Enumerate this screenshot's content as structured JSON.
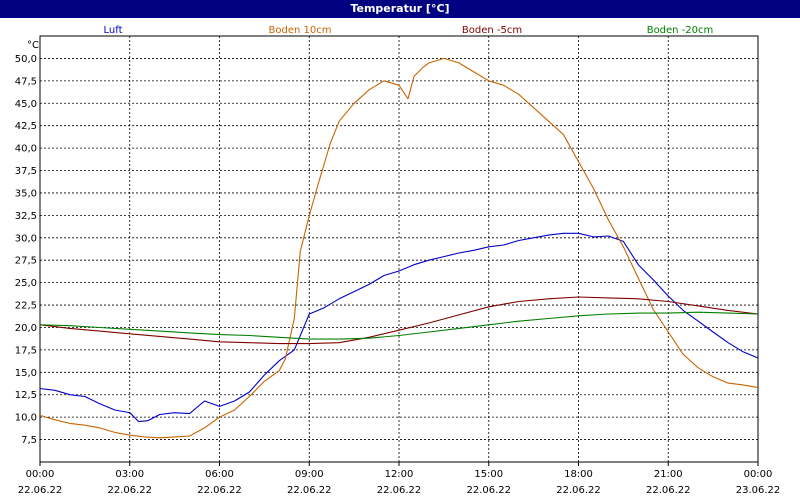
{
  "window": {
    "title": "Temperatur [°C]"
  },
  "chart_data": {
    "type": "line",
    "title": "Temperatur [°C]",
    "ylabel": "°C",
    "xlabel": "",
    "ylim": [
      5.0,
      52.5
    ],
    "xlim": [
      0,
      24
    ],
    "grid": true,
    "legend_placement": "top",
    "y_ticks": [
      "7,5",
      "10,0",
      "12,5",
      "15,0",
      "17,5",
      "20,0",
      "22,5",
      "25,0",
      "27,5",
      "30,0",
      "32,5",
      "35,0",
      "37,5",
      "40,0",
      "42,5",
      "45,0",
      "47,5",
      "50,0"
    ],
    "x_ticks": [
      {
        "time": "00:00",
        "date": "22.06.22"
      },
      {
        "time": "03:00",
        "date": "22.06.22"
      },
      {
        "time": "06:00",
        "date": "22.06.22"
      },
      {
        "time": "09:00",
        "date": "22.06.22"
      },
      {
        "time": "12:00",
        "date": "22.06.22"
      },
      {
        "time": "15:00",
        "date": "22.06.22"
      },
      {
        "time": "18:00",
        "date": "22.06.22"
      },
      {
        "time": "21:00",
        "date": "22.06.22"
      },
      {
        "time": "00:00",
        "date": "23.06.22"
      }
    ],
    "series": [
      {
        "name": "Luft",
        "color": "#0000cc",
        "x": [
          0,
          0.5,
          1,
          1.5,
          2,
          2.5,
          3,
          3.3,
          3.6,
          4,
          4.5,
          5,
          5.5,
          6,
          6.5,
          7,
          7.5,
          8,
          8.5,
          9,
          9.5,
          10,
          10.5,
          11,
          11.5,
          12,
          12.5,
          13,
          13.5,
          14,
          14.5,
          15,
          15.5,
          16,
          16.5,
          17,
          17.5,
          18,
          18.5,
          19,
          19.5,
          20,
          20.5,
          21,
          21.5,
          22,
          22.5,
          23,
          23.5,
          24
        ],
        "y": [
          13.2,
          13.0,
          12.5,
          12.3,
          11.5,
          10.8,
          10.5,
          9.5,
          9.6,
          10.3,
          10.5,
          10.4,
          11.8,
          11.2,
          11.8,
          12.8,
          14.7,
          16.3,
          17.5,
          21.5,
          22.2,
          23.2,
          24.0,
          24.8,
          25.8,
          26.3,
          27.0,
          27.5,
          27.9,
          28.3,
          28.6,
          29.0,
          29.2,
          29.7,
          30.0,
          30.3,
          30.5,
          30.5,
          30.1,
          30.2,
          29.6,
          27.0,
          25.3,
          23.5,
          21.9,
          20.7,
          19.5,
          18.3,
          17.3,
          16.6
        ]
      },
      {
        "name": "Boden 10cm",
        "color": "#c86400",
        "x": [
          0,
          0.5,
          1,
          1.5,
          2,
          2.5,
          3,
          3.5,
          4,
          4.5,
          5,
          5.5,
          6,
          6.5,
          7,
          7.5,
          8,
          8.2,
          8.5,
          8.7,
          9,
          9.3,
          9.7,
          10,
          10.5,
          11,
          11.5,
          12,
          12.3,
          12.5,
          12.8,
          13,
          13.5,
          14,
          14.5,
          15,
          15.5,
          16,
          16.5,
          17,
          17.5,
          18,
          18.5,
          19,
          19.5,
          20,
          20.5,
          21,
          21.5,
          22,
          22.5,
          23,
          23.5,
          24
        ],
        "y": [
          10.2,
          9.7,
          9.3,
          9.1,
          8.8,
          8.3,
          8.0,
          7.8,
          7.7,
          7.8,
          7.9,
          8.8,
          10.0,
          10.8,
          12.3,
          14.0,
          15.2,
          16.5,
          21.0,
          28.5,
          32.5,
          36.0,
          40.5,
          43.0,
          45.0,
          46.5,
          47.5,
          47.0,
          45.5,
          48.0,
          49.0,
          49.5,
          50.0,
          49.5,
          48.5,
          47.5,
          47.0,
          46.0,
          44.5,
          43.0,
          41.5,
          38.5,
          35.5,
          32.0,
          29.0,
          25.5,
          22.0,
          19.5,
          17.0,
          15.5,
          14.5,
          13.8,
          13.6,
          13.3
        ]
      },
      {
        "name": "Boden -5cm",
        "color": "#800000",
        "x": [
          0,
          1,
          2,
          3,
          4,
          5,
          6,
          7,
          8,
          9,
          10,
          11,
          12,
          13,
          14,
          15,
          16,
          17,
          18,
          19,
          20,
          21,
          22,
          23,
          24
        ],
        "y": [
          20.3,
          19.9,
          19.6,
          19.3,
          19.0,
          18.7,
          18.4,
          18.3,
          18.2,
          18.2,
          18.3,
          18.9,
          19.7,
          20.5,
          21.4,
          22.3,
          22.9,
          23.2,
          23.4,
          23.3,
          23.2,
          22.9,
          22.4,
          21.9,
          21.5
        ]
      },
      {
        "name": "Boden -20cm",
        "color": "#008000",
        "x": [
          0,
          1,
          2,
          3,
          4,
          5,
          6,
          7,
          8,
          9,
          10,
          11,
          12,
          13,
          14,
          15,
          16,
          17,
          18,
          19,
          20,
          21,
          22,
          23,
          24
        ],
        "y": [
          20.3,
          20.2,
          20.0,
          19.8,
          19.6,
          19.4,
          19.2,
          19.1,
          18.9,
          18.7,
          18.7,
          18.8,
          19.1,
          19.5,
          19.9,
          20.3,
          20.7,
          21.0,
          21.3,
          21.5,
          21.6,
          21.6,
          21.7,
          21.6,
          21.5
        ]
      }
    ]
  }
}
